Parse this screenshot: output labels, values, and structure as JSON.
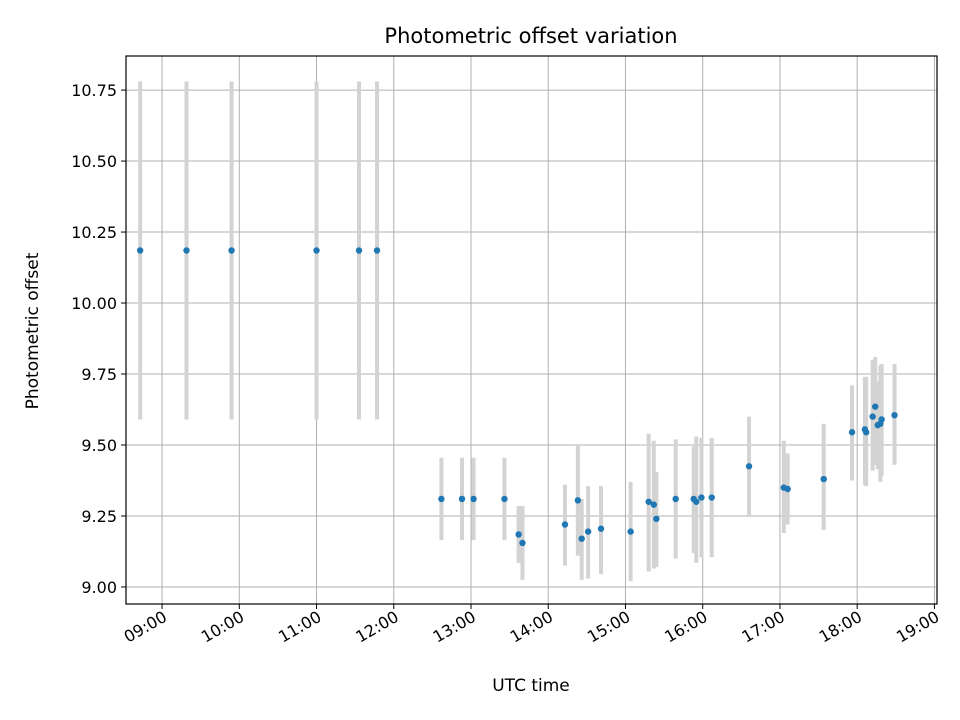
{
  "chart_data": {
    "type": "scatter",
    "title": "Photometric offset variation",
    "xlabel": "UTC time",
    "ylabel": "Photometric offset",
    "grid": true,
    "xlim": [
      "08:32",
      "19:02"
    ],
    "ylim": [
      8.94,
      10.87
    ],
    "x_ticks": [
      "09:00",
      "10:00",
      "11:00",
      "12:00",
      "13:00",
      "14:00",
      "15:00",
      "16:00",
      "17:00",
      "18:00",
      "19:00"
    ],
    "y_ticks": [
      "9.00",
      "9.25",
      "9.50",
      "9.75",
      "10.00",
      "10.25",
      "10.50",
      "10.75"
    ],
    "colors": {
      "point": "#1f77b4",
      "errorbar": "#d3d3d3",
      "grid": "#b0b0b0"
    },
    "points": [
      {
        "x": "08:43",
        "y": 10.185,
        "err": [
          9.59,
          10.78
        ]
      },
      {
        "x": "09:19",
        "y": 10.185,
        "err": [
          9.59,
          10.78
        ]
      },
      {
        "x": "09:54",
        "y": 10.185,
        "err": [
          9.59,
          10.78
        ]
      },
      {
        "x": "11:00",
        "y": 10.185,
        "err": [
          9.59,
          10.78
        ]
      },
      {
        "x": "11:33",
        "y": 10.185,
        "err": [
          9.59,
          10.78
        ]
      },
      {
        "x": "11:47",
        "y": 10.185,
        "err": [
          9.59,
          10.78
        ]
      },
      {
        "x": "12:37",
        "y": 9.31,
        "err": [
          9.165,
          9.455
        ]
      },
      {
        "x": "12:53",
        "y": 9.31,
        "err": [
          9.165,
          9.455
        ]
      },
      {
        "x": "13:02",
        "y": 9.31,
        "err": [
          9.165,
          9.455
        ]
      },
      {
        "x": "13:26",
        "y": 9.31,
        "err": [
          9.165,
          9.455
        ]
      },
      {
        "x": "13:37",
        "y": 9.185,
        "err": [
          9.085,
          9.285
        ]
      },
      {
        "x": "13:40",
        "y": 9.155,
        "err": [
          9.025,
          9.285
        ]
      },
      {
        "x": "14:13",
        "y": 9.22,
        "err": [
          9.075,
          9.36
        ]
      },
      {
        "x": "14:23",
        "y": 9.305,
        "err": [
          9.11,
          9.5
        ]
      },
      {
        "x": "14:26",
        "y": 9.17,
        "err": [
          9.025,
          9.31
        ]
      },
      {
        "x": "14:31",
        "y": 9.195,
        "err": [
          9.03,
          9.355
        ]
      },
      {
        "x": "14:41",
        "y": 9.205,
        "err": [
          9.045,
          9.355
        ]
      },
      {
        "x": "15:04",
        "y": 9.195,
        "err": [
          9.02,
          9.37
        ]
      },
      {
        "x": "15:18",
        "y": 9.3,
        "err": [
          9.055,
          9.54
        ]
      },
      {
        "x": "15:22",
        "y": 9.29,
        "err": [
          9.065,
          9.515
        ]
      },
      {
        "x": "15:24",
        "y": 9.24,
        "err": [
          9.07,
          9.405
        ]
      },
      {
        "x": "15:39",
        "y": 9.31,
        "err": [
          9.1,
          9.52
        ]
      },
      {
        "x": "15:53",
        "y": 9.31,
        "err": [
          9.12,
          9.495
        ]
      },
      {
        "x": "15:55",
        "y": 9.3,
        "err": [
          9.085,
          9.53
        ]
      },
      {
        "x": "15:59",
        "y": 9.315,
        "err": [
          9.105,
          9.525
        ]
      },
      {
        "x": "16:07",
        "y": 9.315,
        "err": [
          9.105,
          9.525
        ]
      },
      {
        "x": "16:36",
        "y": 9.425,
        "err": [
          9.25,
          9.6
        ]
      },
      {
        "x": "17:03",
        "y": 9.35,
        "err": [
          9.19,
          9.515
        ]
      },
      {
        "x": "17:06",
        "y": 9.345,
        "err": [
          9.22,
          9.47
        ]
      },
      {
        "x": "17:34",
        "y": 9.38,
        "err": [
          9.2,
          9.575
        ]
      },
      {
        "x": "17:56",
        "y": 9.545,
        "err": [
          9.375,
          9.71
        ]
      },
      {
        "x": "18:06",
        "y": 9.555,
        "err": [
          9.36,
          9.74
        ]
      },
      {
        "x": "18:07",
        "y": 9.545,
        "err": [
          9.355,
          9.74
        ]
      },
      {
        "x": "18:12",
        "y": 9.6,
        "err": [
          9.41,
          9.8
        ]
      },
      {
        "x": "18:14",
        "y": 9.635,
        "err": [
          9.43,
          9.81
        ]
      },
      {
        "x": "18:16",
        "y": 9.57,
        "err": [
          9.415,
          9.725
        ]
      },
      {
        "x": "18:18",
        "y": 9.575,
        "err": [
          9.37,
          9.78
        ]
      },
      {
        "x": "18:19",
        "y": 9.59,
        "err": [
          9.39,
          9.785
        ]
      },
      {
        "x": "18:29",
        "y": 9.605,
        "err": [
          9.43,
          9.785
        ]
      }
    ]
  }
}
